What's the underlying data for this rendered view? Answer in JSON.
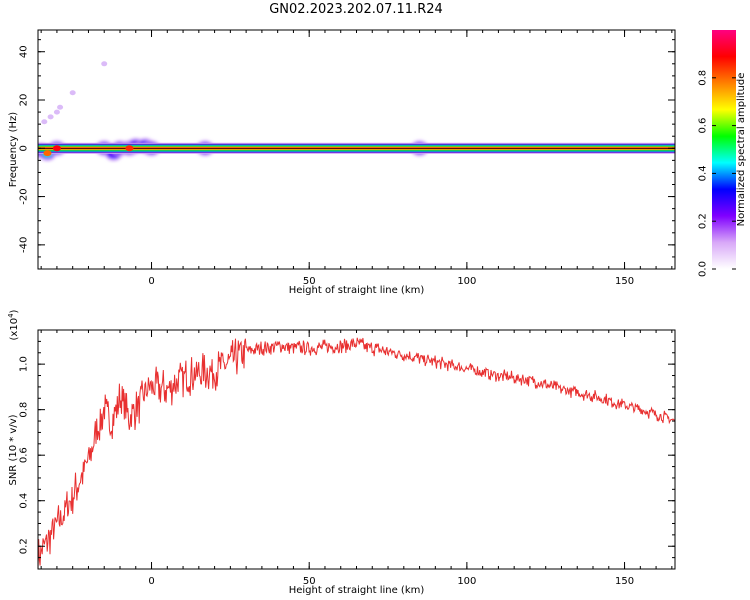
{
  "title": "GN02.2023.202.07.11.R24",
  "chart_data": [
    {
      "type": "heatmap",
      "title": "GN02.2023.202.07.11.R24",
      "xlabel": "Height of straight line (km)",
      "ylabel": "Frequency (Hz)",
      "xlim": [
        -36,
        166
      ],
      "ylim": [
        -50,
        49
      ],
      "x_ticks": [
        0,
        50,
        100,
        150
      ],
      "y_ticks": [
        40,
        20,
        0,
        -20,
        -40
      ],
      "colorbar": {
        "label": "Normalized spectral amplitude",
        "range": [
          0,
          1
        ],
        "ticks": [
          0.0,
          0.2,
          0.4,
          0.6,
          0.8
        ],
        "colormap": [
          "#ffffff",
          "#d8a8f8",
          "#8000ff",
          "#0000ff",
          "#00ffff",
          "#00ff00",
          "#ffff00",
          "#ff8000",
          "#ff0000",
          "#ff0080"
        ]
      },
      "dominant_line": {
        "frequency_hz": 0,
        "x_from": -36,
        "x_to": 166,
        "amplitude": 1.0
      },
      "blobs": [
        {
          "x": -35,
          "y": -1,
          "amp": 0.55
        },
        {
          "x": -33,
          "y": -2,
          "amp": 0.8
        },
        {
          "x": -30,
          "y": 0,
          "amp": 0.9
        },
        {
          "x": -15,
          "y": 0,
          "amp": 0.5
        },
        {
          "x": -12,
          "y": -2,
          "amp": 0.4
        },
        {
          "x": -10,
          "y": 0,
          "amp": 0.45
        },
        {
          "x": -7,
          "y": 0,
          "amp": 0.85
        },
        {
          "x": -5,
          "y": 1,
          "amp": 0.35
        },
        {
          "x": -2,
          "y": 1,
          "amp": 0.45
        },
        {
          "x": 0,
          "y": 0,
          "amp": 0.6
        },
        {
          "x": 17,
          "y": 0,
          "amp": 0.3
        },
        {
          "x": 85,
          "y": 0,
          "amp": 0.25
        }
      ],
      "faint_trail": [
        {
          "x": -34,
          "y": 11
        },
        {
          "x": -32,
          "y": 13
        },
        {
          "x": -30,
          "y": 15
        },
        {
          "x": -29,
          "y": 17
        },
        {
          "x": -25,
          "y": 23
        },
        {
          "x": -15,
          "y": 35
        }
      ]
    },
    {
      "type": "line",
      "xlabel": "Height of straight line (km)",
      "ylabel": "SNR (10 * v/v)",
      "y_multiplier": "(x10",
      "y_multiplier_exp": "4",
      "y_multiplier_close": ")",
      "xlim": [
        -36,
        166
      ],
      "ylim": [
        0.1,
        1.15
      ],
      "x_ticks": [
        0,
        50,
        100,
        150
      ],
      "y_ticks": [
        0.2,
        0.4,
        0.6,
        0.8,
        1.0
      ],
      "series": [
        {
          "color": "#e83030",
          "x": [
            -36,
            -32,
            -28,
            -24,
            -20,
            -17,
            -15,
            -13,
            -10,
            -7,
            -4,
            -1,
            2,
            5,
            10,
            15,
            20,
            25,
            30,
            40,
            50,
            60,
            65,
            70,
            80,
            90,
            100,
            110,
            120,
            130,
            140,
            150,
            160,
            166
          ],
          "y": [
            0.15,
            0.25,
            0.34,
            0.45,
            0.58,
            0.72,
            0.8,
            0.74,
            0.85,
            0.76,
            0.82,
            0.9,
            0.9,
            0.89,
            0.94,
            0.96,
            0.97,
            1.01,
            1.06,
            1.08,
            1.07,
            1.08,
            1.09,
            1.07,
            1.04,
            1.01,
            0.98,
            0.95,
            0.93,
            0.89,
            0.86,
            0.82,
            0.78,
            0.75
          ]
        }
      ]
    }
  ]
}
